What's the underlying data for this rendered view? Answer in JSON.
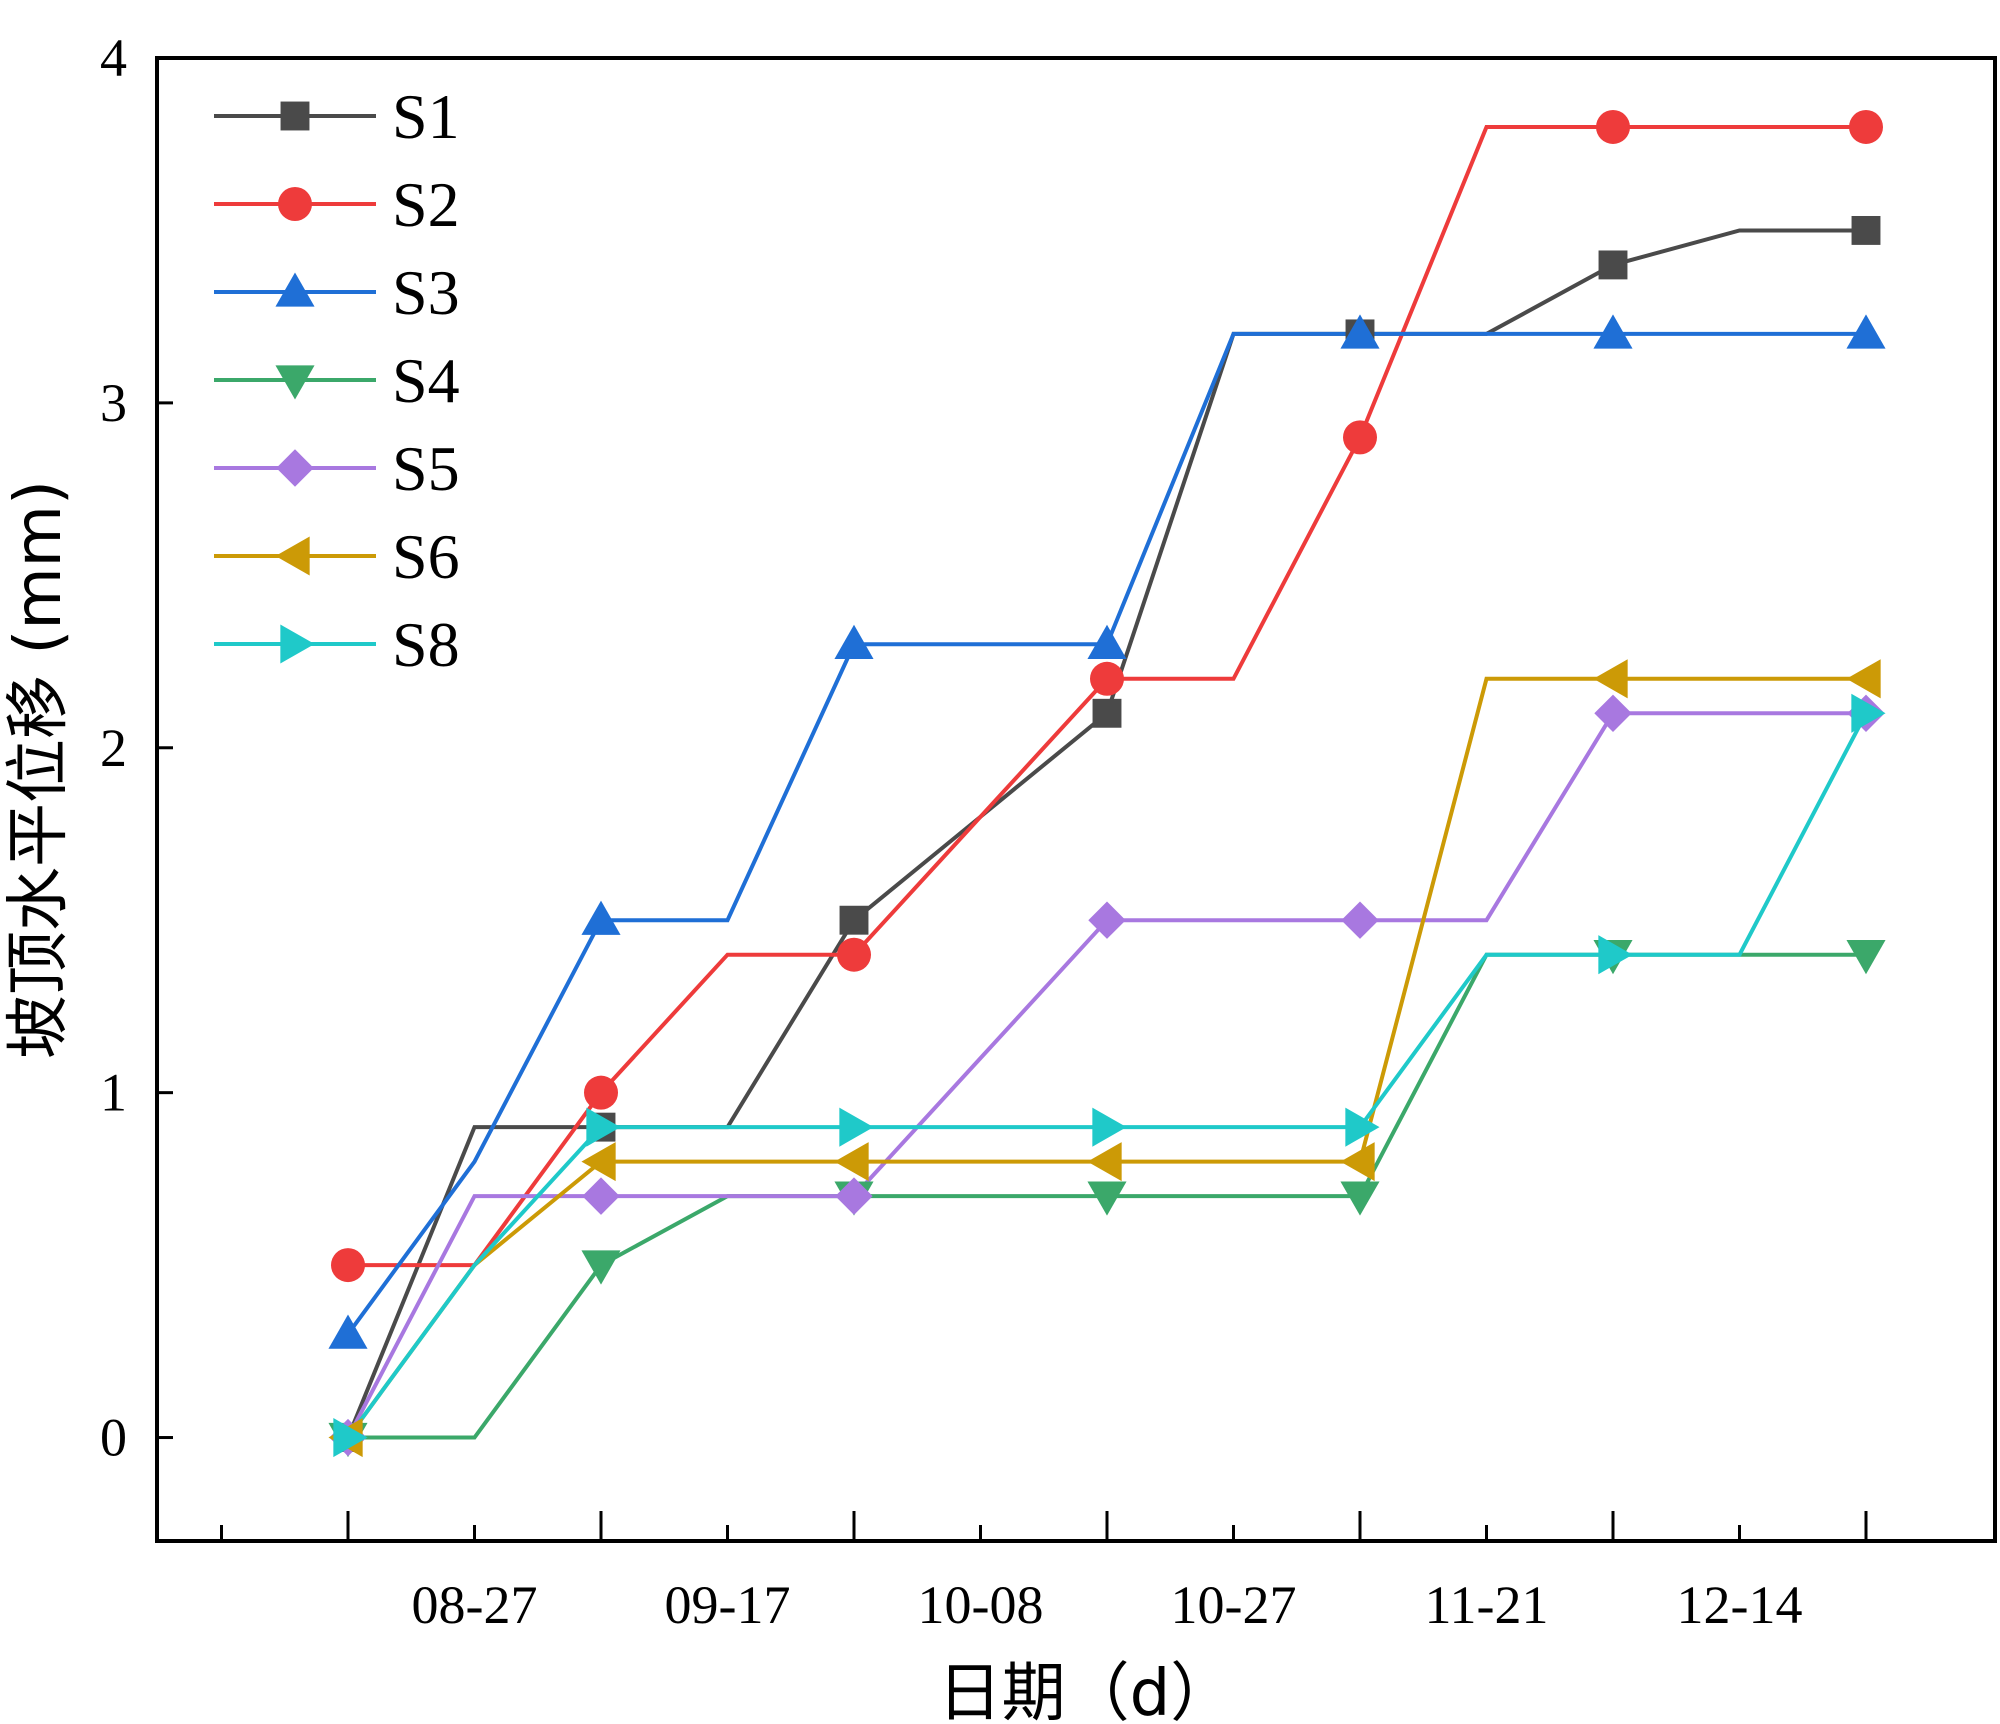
{
  "chart_data": {
    "type": "line",
    "xlabel": "日期（d）",
    "ylabel": "坡顶水平位移 (mm)",
    "ylim": [
      -0.3,
      4
    ],
    "yticks": [
      0,
      1,
      2,
      3,
      4
    ],
    "x_major_tick_labels": [
      "08-27",
      "09-17",
      "10-08",
      "10-27",
      "11-21",
      "12-14"
    ],
    "x": [
      0,
      1,
      2,
      3,
      4,
      5,
      6,
      7,
      8,
      9,
      10,
      11,
      12
    ],
    "legend_position": "top-left",
    "grid": false,
    "series": [
      {
        "name": "S1",
        "color": "#4a4a4a",
        "marker": "square",
        "values": [
          0,
          0.9,
          0.9,
          0.9,
          1.5,
          1.8,
          2.1,
          3.2,
          3.2,
          3.2,
          3.4,
          3.5,
          3.5
        ]
      },
      {
        "name": "S2",
        "color": "#ee3b3b",
        "marker": "circle",
        "values": [
          0.5,
          0.5,
          1.0,
          1.4,
          1.4,
          1.8,
          2.2,
          2.2,
          2.9,
          3.8,
          3.8,
          3.8,
          3.8
        ]
      },
      {
        "name": "S3",
        "color": "#1f6fd6",
        "marker": "triangle-up",
        "values": [
          0.3,
          0.8,
          1.5,
          1.5,
          2.3,
          2.3,
          2.3,
          3.2,
          3.2,
          3.2,
          3.2,
          3.2,
          3.2
        ]
      },
      {
        "name": "S4",
        "color": "#3ba86a",
        "marker": "triangle-down",
        "values": [
          0,
          0,
          0.5,
          0.7,
          0.7,
          0.7,
          0.7,
          0.7,
          0.7,
          1.4,
          1.4,
          1.4,
          1.4
        ]
      },
      {
        "name": "S5",
        "color": "#a878e0",
        "marker": "diamond",
        "values": [
          0,
          0.7,
          0.7,
          0.7,
          0.7,
          1.1,
          1.5,
          1.5,
          1.5,
          1.5,
          2.1,
          2.1,
          2.1
        ]
      },
      {
        "name": "S6",
        "color": "#cc9a06",
        "marker": "triangle-left",
        "values": [
          0,
          0.5,
          0.8,
          0.8,
          0.8,
          0.8,
          0.8,
          0.8,
          0.8,
          2.2,
          2.2,
          2.2,
          2.2
        ]
      },
      {
        "name": "S8",
        "color": "#1fc9c9",
        "marker": "triangle-right",
        "values": [
          0,
          0.5,
          0.9,
          0.9,
          0.9,
          0.9,
          0.9,
          0.9,
          0.9,
          1.4,
          1.4,
          1.4,
          2.1
        ]
      }
    ],
    "marker_indices": [
      0,
      2,
      4,
      6,
      8,
      10,
      12
    ]
  }
}
